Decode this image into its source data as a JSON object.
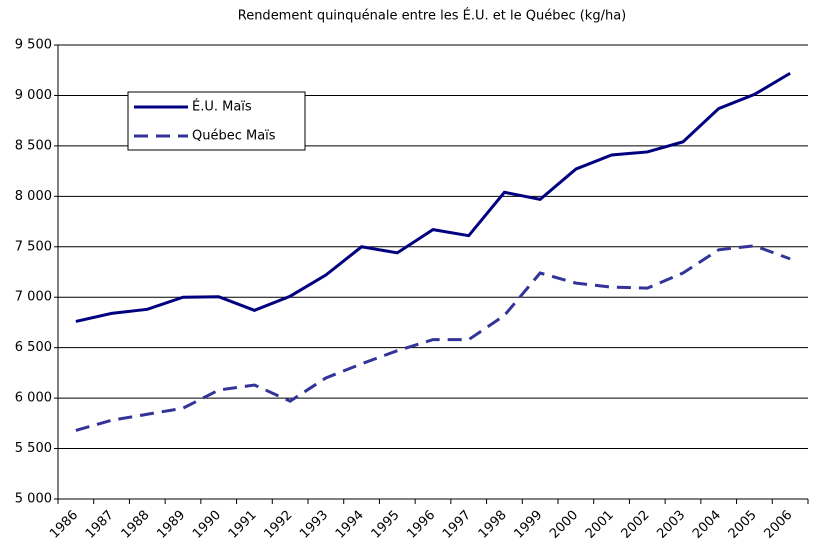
{
  "chart_data": {
    "type": "line",
    "title": "Rendement quinquénale entre les É.U. et le Québec (kg/ha)",
    "categories": [
      "1986",
      "1987",
      "1988",
      "1989",
      "1990",
      "1991",
      "1992",
      "1993",
      "1994",
      "1995",
      "1996",
      "1997",
      "1998",
      "1999",
      "2000",
      "2001",
      "2002",
      "2003",
      "2004",
      "2005",
      "2006"
    ],
    "series": [
      {
        "name": "É.U. Maïs",
        "color": "#000080",
        "dash": "solid",
        "values": [
          6760,
          6840,
          6880,
          7000,
          7005,
          6870,
          7010,
          7220,
          7500,
          7440,
          7670,
          7610,
          8040,
          7970,
          8270,
          8410,
          8440,
          8540,
          8870,
          9010,
          9220
        ]
      },
      {
        "name": "Québec Maïs",
        "color": "#333399",
        "dash": "dashed",
        "values": [
          5680,
          5780,
          5840,
          5900,
          6080,
          6130,
          5970,
          6200,
          6340,
          6470,
          6580,
          6580,
          6820,
          7240,
          7140,
          7100,
          7090,
          7240,
          7470,
          7510,
          7380
        ]
      }
    ],
    "ylim": [
      5000,
      9500
    ],
    "yticks": [
      {
        "value": 5000,
        "label": "5 000"
      },
      {
        "value": 5500,
        "label": "5 500"
      },
      {
        "value": 6000,
        "label": "6 000"
      },
      {
        "value": 6500,
        "label": "6 500"
      },
      {
        "value": 7000,
        "label": "7 000"
      },
      {
        "value": 7500,
        "label": "7 500"
      },
      {
        "value": 8000,
        "label": "8 000"
      },
      {
        "value": 8500,
        "label": "8 500"
      },
      {
        "value": 9000,
        "label": "9 000"
      },
      {
        "value": 9500,
        "label": "9 500"
      }
    ],
    "grid": true,
    "legend": "upper left"
  }
}
